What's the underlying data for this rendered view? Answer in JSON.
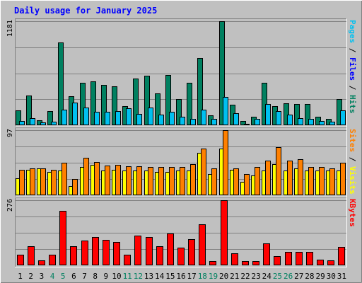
{
  "chart_data": {
    "type": "bar",
    "title": "Daily usage for January 2025",
    "days": [
      1,
      2,
      3,
      4,
      5,
      6,
      7,
      8,
      9,
      10,
      11,
      12,
      13,
      14,
      15,
      16,
      17,
      18,
      19,
      20,
      21,
      22,
      23,
      24,
      25,
      26,
      27,
      28,
      29,
      30,
      31
    ],
    "weekend_days": [
      4,
      5,
      11,
      12,
      18,
      19,
      25,
      26
    ],
    "panels": [
      {
        "id": "top",
        "axis_max_label": "1181",
        "ylim": [
          0,
          1181
        ],
        "right_label_parts": [
          {
            "text": "Pages",
            "color": "#00c0f0"
          },
          {
            "text": " / ",
            "color": "#000000"
          },
          {
            "text": "Files",
            "color": "#0000ff"
          },
          {
            "text": " / ",
            "color": "#000000"
          },
          {
            "text": "Hits",
            "color": "#008060"
          }
        ],
        "series": [
          {
            "name": "Hits",
            "color": "#008060",
            "values": [
              170,
              340,
              60,
              160,
              940,
              330,
              480,
              500,
              460,
              440,
              220,
              530,
              560,
              360,
              570,
              300,
              480,
              760,
              115,
              1181,
              230,
              45,
              95,
              480,
              220,
              250,
              240,
              240,
              95,
              75,
              300
            ]
          },
          {
            "name": "Files",
            "color": "#00c0f0",
            "values": [
              50,
              80,
              30,
              40,
              180,
              260,
              200,
              150,
              150,
              160,
              190,
              130,
              200,
              120,
              150,
              100,
              70,
              180,
              70,
              320,
              140,
              20,
              70,
              240,
              160,
              120,
              80,
              70,
              50,
              40,
              170
            ]
          }
        ]
      },
      {
        "id": "mid",
        "axis_max_label": "97",
        "ylim": [
          0,
          97
        ],
        "right_label_parts": [
          {
            "text": "Sites",
            "color": "#ff8000"
          },
          {
            "text": " / ",
            "color": "#000000"
          },
          {
            "text": "Visits",
            "color": "#ffff00"
          }
        ],
        "series": [
          {
            "name": "Visits",
            "color": "#ffff00",
            "values": [
              25,
              38,
              40,
              35,
              37,
              14,
              42,
              45,
              37,
              38,
              37,
              37,
              37,
              35,
              35,
              37,
              37,
              63,
              32,
              70,
              38,
              20,
              30,
              37,
              46,
              37,
              40,
              37,
              37,
              37,
              37
            ]
          },
          {
            "name": "Sites",
            "color": "#ff8000",
            "values": [
              38,
              40,
              40,
              38,
              48,
              24,
              56,
              50,
              44,
              45,
              43,
              43,
              42,
              42,
              42,
              42,
              46,
              70,
              40,
              97,
              40,
              32,
              42,
              52,
              72,
              52,
              54,
              42,
              42,
              40,
              49
            ]
          }
        ]
      },
      {
        "id": "bot",
        "axis_max_label": "276",
        "ylim": [
          0,
          276
        ],
        "right_label_parts": [
          {
            "text": "KBytes",
            "color": "#ff0000"
          }
        ],
        "series": [
          {
            "name": "KBytes",
            "color": "#ff0000",
            "values": [
              45,
              80,
              20,
              45,
              230,
              80,
              105,
              120,
              108,
              100,
              45,
              125,
              120,
              82,
              135,
              74,
              110,
              175,
              18,
              276,
              52,
              18,
              18,
              92,
              38,
              58,
              58,
              58,
              25,
              22,
              77
            ]
          }
        ]
      }
    ]
  }
}
